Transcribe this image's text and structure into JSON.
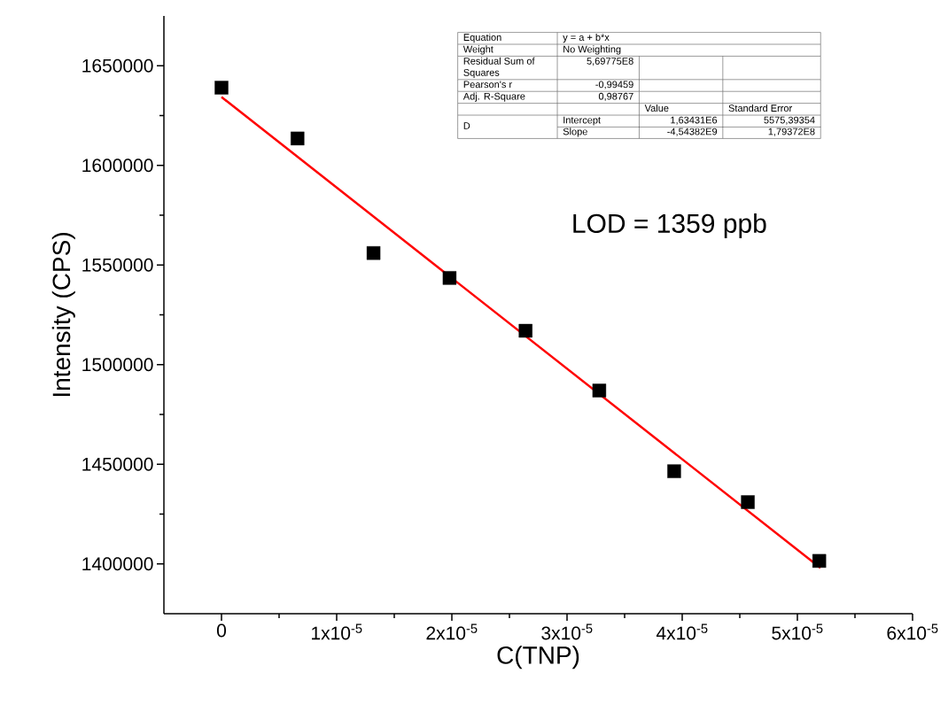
{
  "chart_data": {
    "type": "scatter",
    "xlabel": "C(TNP)",
    "ylabel": "Intensity (CPS)",
    "xlim": [
      -5e-06,
      6e-05
    ],
    "ylim": [
      1375000,
      1675000
    ],
    "xticks": [
      0,
      {
        "value": 1e-05,
        "label": "1x10$^{-5}$"
      },
      {
        "value": 2e-05,
        "label": "2x10$^{-5}$"
      },
      {
        "value": 3e-05,
        "label": "3x10$^{-5}$"
      },
      {
        "value": 4e-05,
        "label": "4x10$^{-5}$"
      },
      {
        "value": 5e-05,
        "label": "5x10$^{-5}$"
      },
      {
        "value": 6e-05,
        "label": "6x10$^{-5}$"
      }
    ],
    "yticks": [
      1400000,
      1450000,
      1500000,
      1550000,
      1600000,
      1650000
    ],
    "series": [
      {
        "type": "scatter",
        "color": "#000000",
        "marker": "square",
        "x": [
          0,
          6.6e-06,
          1.32e-05,
          1.98e-05,
          2.64e-05,
          3.28e-05,
          3.93e-05,
          4.57e-05,
          5.19e-05
        ],
        "values": [
          1639000,
          1613500,
          1556000,
          1543500,
          1517000,
          1487000,
          1446500,
          1431000,
          1401500
        ]
      },
      {
        "type": "line",
        "color": "#ff0000",
        "marker": "none",
        "x": [
          0,
          5.2e-05
        ],
        "values": [
          1634300,
          1398000
        ]
      }
    ],
    "annotations": [
      "Equation",
      "y = a + b*x",
      "Weight",
      "No Weighting",
      "Residual Sum of Squares",
      "5,69775E8",
      "Pearson's r",
      "-0,99459",
      "Adj. R-Square",
      "0,98767",
      "Value",
      "Standard Error",
      "D",
      "Intercept",
      "1,63431E6",
      "5575,39354",
      "Slope",
      "-4,54382E9",
      "1,79372E8",
      "LOD = 1359 ppb"
    ]
  }
}
